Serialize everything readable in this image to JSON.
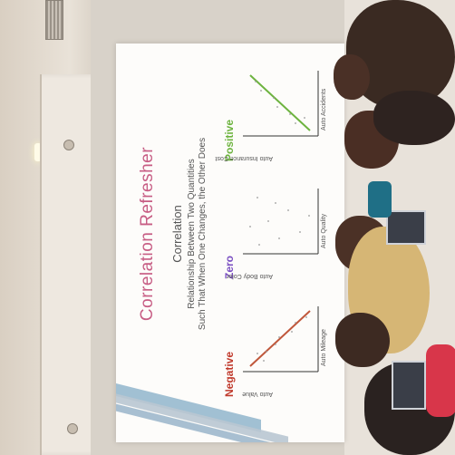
{
  "slide": {
    "title": "Correlation Refresher",
    "subtitle": "Correlation",
    "description_line1": "Relationship Between Two Quantities",
    "description_line2": "Such That When One Changes, the Other Does",
    "plots": [
      {
        "label": "Negative",
        "label_color": "#c0392b",
        "x_axis": "Auto Mileage",
        "y_axis": "Auto Value",
        "line_color": "#c0573b"
      },
      {
        "label": "Zero",
        "label_color": "#7a4fc2",
        "x_axis": "Auto Quality",
        "y_axis": "Auto Body Color"
      },
      {
        "label": "Positive",
        "label_color": "#6db33f",
        "x_axis": "Auto Accidents",
        "y_axis": "Auto Insurance Cost",
        "line_color": "#6db33f"
      }
    ]
  },
  "colors": {
    "title": "#c75d84",
    "accent_blue": "#8ab0c9"
  }
}
